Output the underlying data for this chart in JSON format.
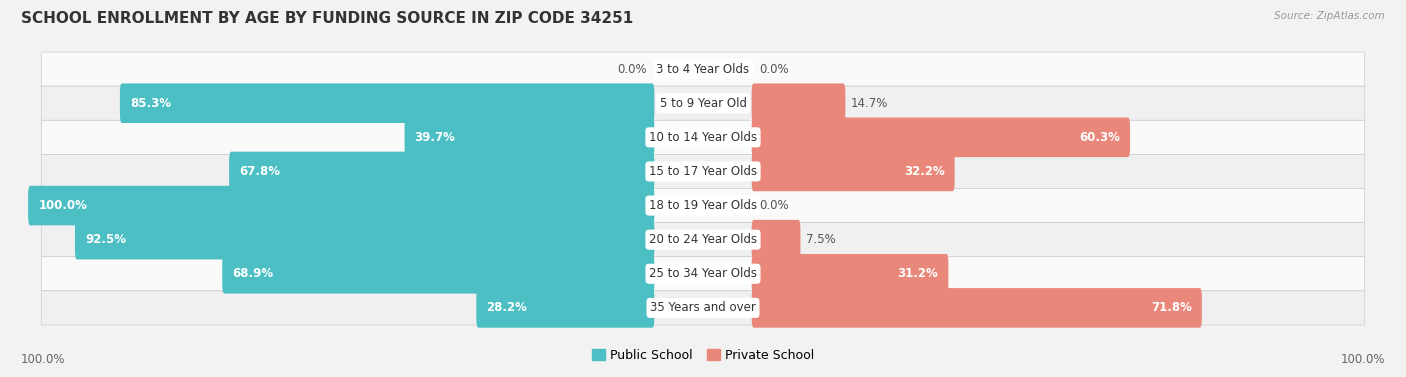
{
  "title": "SCHOOL ENROLLMENT BY AGE BY FUNDING SOURCE IN ZIP CODE 34251",
  "source": "Source: ZipAtlas.com",
  "categories": [
    "3 to 4 Year Olds",
    "5 to 9 Year Old",
    "10 to 14 Year Olds",
    "15 to 17 Year Olds",
    "18 to 19 Year Olds",
    "20 to 24 Year Olds",
    "25 to 34 Year Olds",
    "35 Years and over"
  ],
  "public_values": [
    0.0,
    85.3,
    39.7,
    67.8,
    100.0,
    92.5,
    68.9,
    28.2
  ],
  "private_values": [
    0.0,
    14.7,
    60.3,
    32.2,
    0.0,
    7.5,
    31.2,
    71.8
  ],
  "public_color": "#4BBFC4",
  "private_color": "#E8877A",
  "public_label": "Public School",
  "private_label": "Private School",
  "bg_color": "#F2F2F2",
  "row_colors": [
    "#FAFAFA",
    "#F0F0F0"
  ],
  "axis_label_left": "100.0%",
  "axis_label_right": "100.0%",
  "title_fontsize": 11,
  "label_fontsize": 8.5,
  "value_fontsize": 8.5,
  "legend_fontsize": 9,
  "inside_label_threshold": 15
}
